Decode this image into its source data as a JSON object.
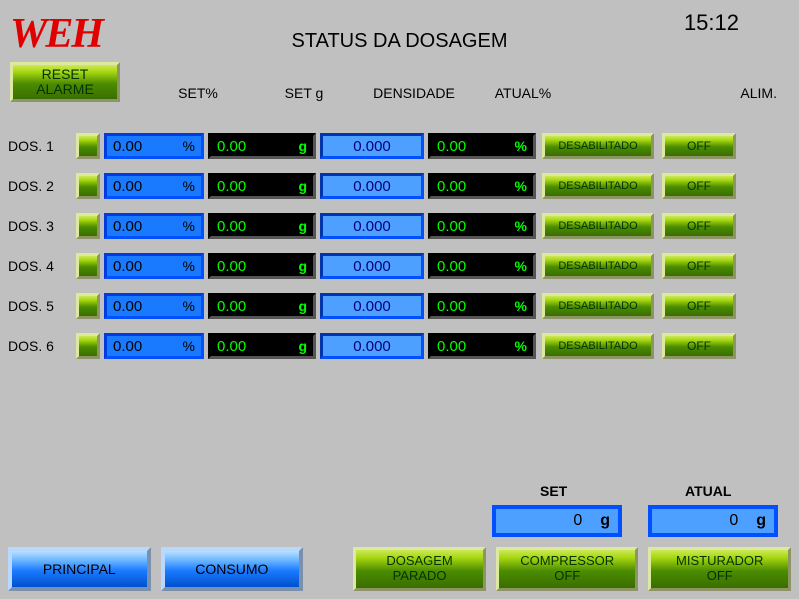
{
  "logo_text": "WEH",
  "title": "STATUS DA DOSAGEM",
  "clock": "15:12",
  "reset_label": "RESET\nALARME",
  "headers": {
    "set_pct": "SET%",
    "set_g": "SET g",
    "densidade": "DENSIDADE",
    "atual_pct": "ATUAL%",
    "alim": "ALIM."
  },
  "rows": [
    {
      "label": "DOS. 1",
      "set_pct": "0.00",
      "set_g": "0.00",
      "dens": "0.000",
      "atual_pct": "0.00",
      "hab": "DESABILITADO",
      "alim": "OFF"
    },
    {
      "label": "DOS. 2",
      "set_pct": "0.00",
      "set_g": "0.00",
      "dens": "0.000",
      "atual_pct": "0.00",
      "hab": "DESABILITADO",
      "alim": "OFF"
    },
    {
      "label": "DOS. 3",
      "set_pct": "0.00",
      "set_g": "0.00",
      "dens": "0.000",
      "atual_pct": "0.00",
      "hab": "DESABILITADO",
      "alim": "OFF"
    },
    {
      "label": "DOS. 4",
      "set_pct": "0.00",
      "set_g": "0.00",
      "dens": "0.000",
      "atual_pct": "0.00",
      "hab": "DESABILITADO",
      "alim": "OFF"
    },
    {
      "label": "DOS. 5",
      "set_pct": "0.00",
      "set_g": "0.00",
      "dens": "0.000",
      "atual_pct": "0.00",
      "hab": "DESABILITADO",
      "alim": "OFF"
    },
    {
      "label": "DOS. 6",
      "set_pct": "0.00",
      "set_g": "0.00",
      "dens": "0.000",
      "atual_pct": "0.00",
      "hab": "DESABILITADO",
      "alim": "OFF"
    }
  ],
  "units": {
    "pct": "%",
    "g": "g"
  },
  "lower": {
    "set_label": "SET",
    "atual_label": "ATUAL",
    "set_val": "0",
    "atual_val": "0",
    "unit": "g"
  },
  "bottom": {
    "principal": "PRINCIPAL",
    "consumo": "CONSUMO",
    "dosagem": "DOSAGEM\nPARADO",
    "compressor": "COMPRESSOR\nOFF",
    "misturador": "MISTURADOR\nOFF"
  },
  "colors": {
    "bg": "#c0c0c0",
    "logo": "#e00000",
    "blue_field": "#1a7aff",
    "blue_border": "#0050ff",
    "black_field": "#000000",
    "green_text": "#00ff00"
  }
}
